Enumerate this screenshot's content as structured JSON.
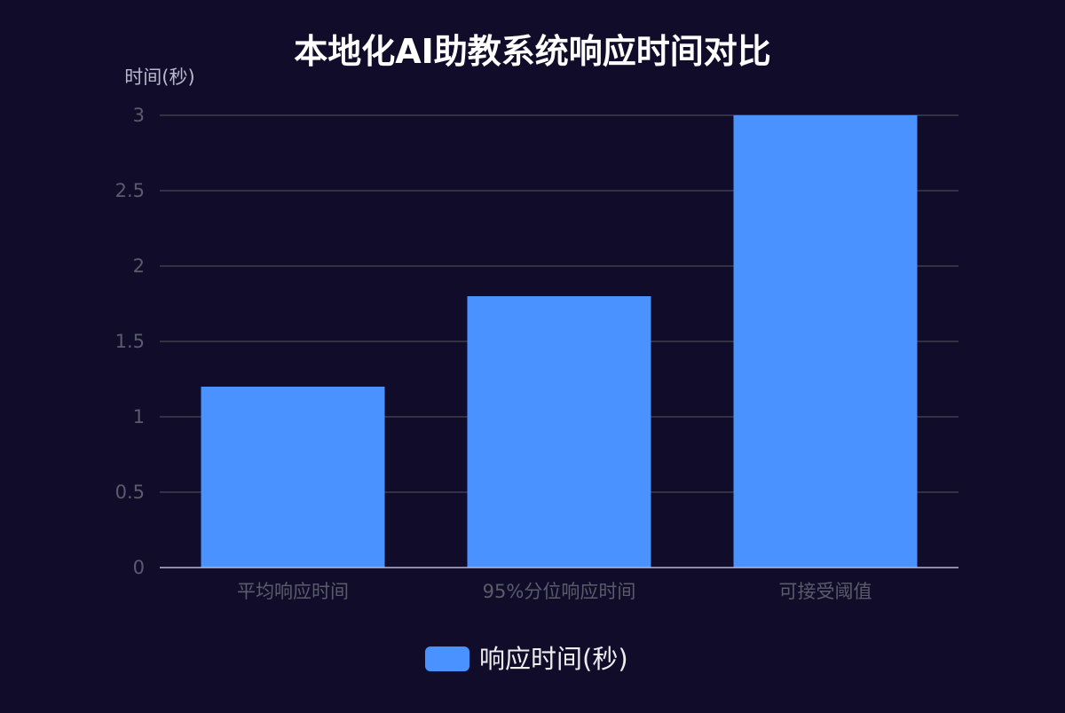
{
  "chart_data": {
    "type": "bar",
    "title": "本地化AI助教系统响应时间对比",
    "ylabel": "时间(秒)",
    "xlabel": "",
    "categories": [
      "平均响应时间",
      "95%分位响应时间",
      "可接受阈值"
    ],
    "series": [
      {
        "name": "响应时间(秒)",
        "values": [
          1.2,
          1.8,
          3
        ]
      }
    ],
    "ylim": [
      0,
      3
    ],
    "yticks": [
      "0",
      "0.5",
      "1",
      "1.5",
      "2",
      "2.5",
      "3"
    ],
    "grid": true,
    "legend": "bottom-center"
  },
  "colors": {
    "background": "#100c2a",
    "bar": "#4992ff",
    "grid": "#484753",
    "axis": "#b9b8ce",
    "tick_label": "#5c5b6b",
    "title": "#ffffff",
    "axis_name": "#b9b8ce",
    "legend_text": "#eeeeee"
  }
}
